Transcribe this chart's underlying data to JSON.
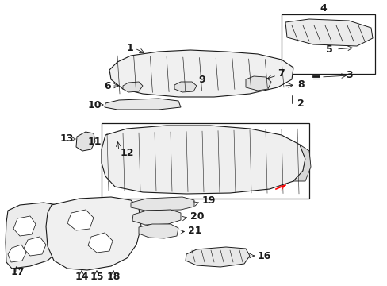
{
  "bg_color": "#ffffff",
  "lc": "#1a1a1a",
  "fig_w": 4.89,
  "fig_h": 3.6,
  "dpi": 100
}
